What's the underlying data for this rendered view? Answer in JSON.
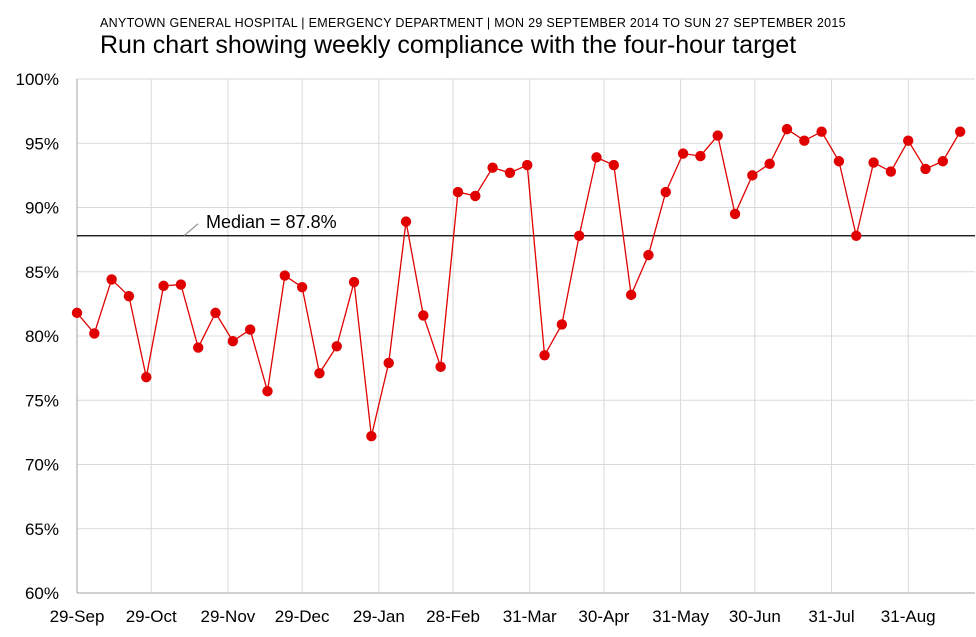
{
  "header": {
    "subtitle": "ANYTOWN GENERAL HOSPITAL  | EMERGENCY DEPARTMENT  | MON 29 SEPTEMBER 2014 TO SUN 27 SEPTEMBER 2015",
    "title": "Run chart showing weekly compliance with the four-hour target"
  },
  "chart_data": {
    "type": "line",
    "title": "Run chart showing weekly compliance with the four-hour target",
    "subtitle": "ANYTOWN GENERAL HOSPITAL  | EMERGENCY DEPARTMENT  | MON 29 SEPTEMBER 2014 TO SUN 27 SEPTEMBER 2015",
    "xlabel": "",
    "ylabel": "",
    "ylim": [
      60,
      100
    ],
    "yticks": [
      "60%",
      "65%",
      "70%",
      "75%",
      "80%",
      "85%",
      "90%",
      "95%",
      "100%"
    ],
    "xticks": [
      "29-Sep",
      "29-Oct",
      "29-Nov",
      "29-Dec",
      "29-Jan",
      "28-Feb",
      "31-Mar",
      "30-Apr",
      "31-May",
      "30-Jun",
      "31-Jul",
      "31-Aug"
    ],
    "xtick_dates": [
      "2014-09-29",
      "2014-10-29",
      "2014-11-29",
      "2014-12-29",
      "2015-01-29",
      "2015-02-28",
      "2015-03-31",
      "2015-04-30",
      "2015-05-31",
      "2015-06-30",
      "2015-07-31",
      "2015-08-31"
    ],
    "xlim": [
      "2014-09-29",
      "2015-09-27"
    ],
    "grid": true,
    "line_color": "#e00000",
    "median": {
      "value": 87.8,
      "label": "Median = 87.8%",
      "color": "#000000"
    },
    "series": [
      {
        "x": [
          "2014-09-29",
          "2014-10-06",
          "2014-10-13",
          "2014-10-20",
          "2014-10-27",
          "2014-11-03",
          "2014-11-10",
          "2014-11-17",
          "2014-11-24",
          "2014-12-01",
          "2014-12-08",
          "2014-12-15",
          "2014-12-22",
          "2014-12-29",
          "2015-01-05",
          "2015-01-12",
          "2015-01-19",
          "2015-01-26",
          "2015-02-02",
          "2015-02-09",
          "2015-02-16",
          "2015-02-23",
          "2015-03-02",
          "2015-03-09",
          "2015-03-16",
          "2015-03-23",
          "2015-03-30",
          "2015-04-06",
          "2015-04-13",
          "2015-04-20",
          "2015-04-27",
          "2015-05-04",
          "2015-05-11",
          "2015-05-18",
          "2015-05-25",
          "2015-06-01",
          "2015-06-08",
          "2015-06-15",
          "2015-06-22",
          "2015-06-29",
          "2015-07-06",
          "2015-07-13",
          "2015-07-20",
          "2015-07-27",
          "2015-08-03",
          "2015-08-10",
          "2015-08-17",
          "2015-08-24",
          "2015-08-31",
          "2015-09-07",
          "2015-09-14",
          "2015-09-21"
        ],
        "values": [
          81.8,
          80.2,
          84.4,
          83.1,
          76.8,
          83.9,
          84.0,
          79.1,
          81.8,
          79.6,
          80.5,
          75.7,
          84.7,
          83.8,
          77.1,
          79.2,
          84.2,
          72.2,
          77.9,
          88.9,
          81.6,
          77.6,
          91.2,
          90.9,
          93.1,
          92.7,
          93.3,
          78.5,
          80.9,
          87.8,
          93.9,
          93.3,
          83.2,
          86.3,
          91.2,
          94.2,
          94.0,
          95.6,
          89.5,
          92.5,
          93.4,
          96.1,
          95.2,
          95.9,
          93.6,
          87.8,
          93.5,
          92.8,
          95.2,
          93.0,
          93.6,
          95.9
        ]
      }
    ]
  }
}
